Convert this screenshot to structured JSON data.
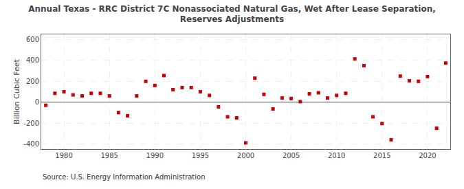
{
  "chart_data": {
    "type": "scatter",
    "title": "Annual Texas - RRC District 7C Nonassociated Natural Gas, Wet After Lease Separation,\nReserves Adjustments",
    "ylabel": "Billion Cubic Feet",
    "annotations": [
      "Source: U.S. Energy Information Administration"
    ],
    "x": [
      1978,
      1979,
      1980,
      1981,
      1982,
      1983,
      1984,
      1985,
      1986,
      1987,
      1988,
      1989,
      1990,
      1991,
      1992,
      1993,
      1994,
      1995,
      1996,
      1997,
      1998,
      1999,
      2000,
      2001,
      2002,
      2003,
      2004,
      2005,
      2006,
      2007,
      2008,
      2009,
      2010,
      2011,
      2012,
      2013,
      2014,
      2015,
      2016,
      2017,
      2018,
      2019,
      2020,
      2021,
      2022
    ],
    "values": [
      -30,
      85,
      100,
      70,
      60,
      85,
      85,
      60,
      -100,
      -130,
      60,
      200,
      160,
      255,
      120,
      140,
      140,
      100,
      65,
      -45,
      -140,
      -150,
      -390,
      230,
      75,
      -65,
      40,
      35,
      5,
      80,
      90,
      40,
      65,
      85,
      415,
      350,
      -140,
      -205,
      -360,
      250,
      205,
      200,
      245,
      -250,
      375
    ],
    "color": "#cc0000",
    "marker": "square",
    "xlim": [
      1977.5,
      2022.5
    ],
    "ylim": [
      -450,
      650
    ],
    "xticks": [
      1980,
      1985,
      1990,
      1995,
      2000,
      2005,
      2010,
      2015,
      2020
    ],
    "yticks": [
      -400,
      -200,
      0,
      200,
      400,
      600
    ],
    "grid": true
  }
}
